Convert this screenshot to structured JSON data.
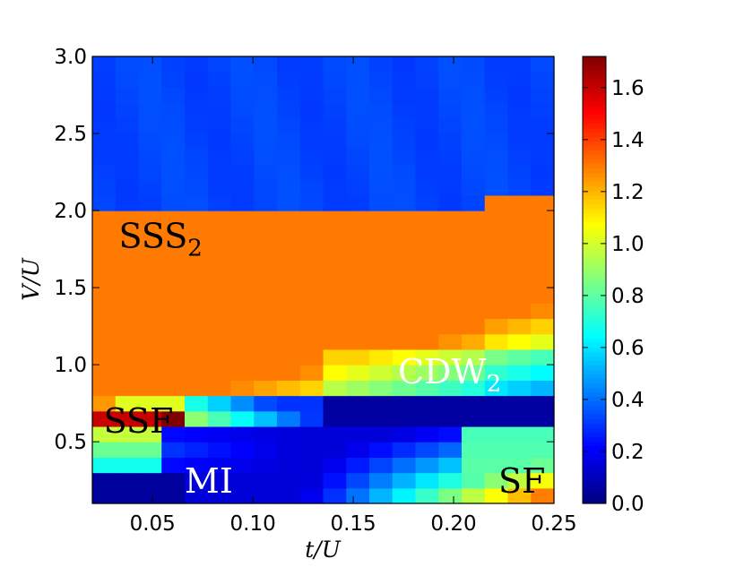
{
  "chart_data": {
    "type": "heatmap",
    "title": "",
    "xlabel": "t/U",
    "ylabel": "V/U",
    "xlim": [
      0.02,
      0.25
    ],
    "ylim": [
      0.1,
      3.0
    ],
    "x_ticks": [
      "0.05",
      "0.10",
      "0.15",
      "0.20",
      "0.25"
    ],
    "x_tick_values": [
      0.05,
      0.1,
      0.15,
      0.2,
      0.25
    ],
    "y_ticks": [
      "0.5",
      "1.0",
      "1.5",
      "2.0",
      "2.5",
      "3.0"
    ],
    "y_tick_values": [
      0.5,
      1.0,
      1.5,
      2.0,
      2.5,
      3.0
    ],
    "colorbar": {
      "vmin": 0.0,
      "vmax": 1.72,
      "ticks": [
        "0.0",
        "0.2",
        "0.4",
        "0.6",
        "0.8",
        "1.0",
        "1.2",
        "1.4",
        "1.6"
      ],
      "tick_values": [
        0.0,
        0.2,
        0.4,
        0.6,
        0.8,
        1.0,
        1.2,
        1.4,
        1.6
      ],
      "colormap": "jet"
    },
    "grid": {
      "nx": 20,
      "ny": 29,
      "x_start": 0.02,
      "x_step": 0.0115,
      "y_start": 0.1,
      "y_step": 0.1
    },
    "regions": [
      {
        "name": "SSS2",
        "text": "SSS",
        "subscript": "2",
        "x": 0.054,
        "y": 1.76,
        "color": "#000000"
      },
      {
        "name": "SSF",
        "text": "SSF",
        "x": 0.043,
        "y": 0.56,
        "color": "#000000"
      },
      {
        "name": "MI",
        "text": "MI",
        "x": 0.078,
        "y": 0.17,
        "color": "#ffffff"
      },
      {
        "name": "CDW2",
        "text": "CDW",
        "subscript": "2",
        "x": 0.198,
        "y": 0.88,
        "color": "#ffffff"
      },
      {
        "name": "SF",
        "text": "SF",
        "x": 0.234,
        "y": 0.17,
        "color": "#000000"
      }
    ],
    "phase_boundaries": {
      "cdw_sss_V": 2.05,
      "cdw_sss_V_right": 2.1,
      "cdw_sss_right_t": 0.215,
      "ssf_top_V": 0.75,
      "cdw_bottom_V": 0.6
    }
  }
}
